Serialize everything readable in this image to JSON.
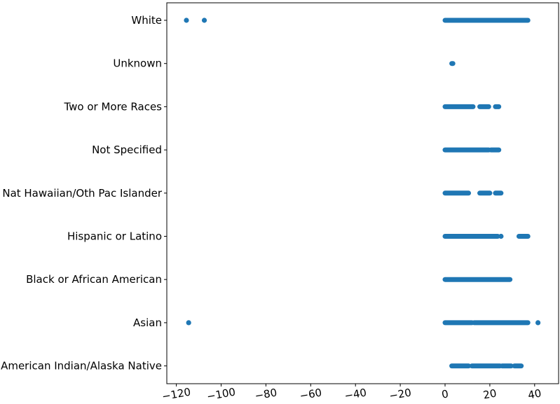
{
  "chart_data": {
    "type": "scatter",
    "orientation": "horizontal-categorical",
    "title": "",
    "xlabel": "",
    "ylabel": "",
    "xlim": [
      -125,
      50
    ],
    "xticks": [
      -120,
      -100,
      -80,
      -60,
      -40,
      -20,
      0,
      20,
      40
    ],
    "xtick_labels": [
      "−120",
      "−100",
      "−80",
      "−60",
      "−40",
      "−20",
      "0",
      "20",
      "40"
    ],
    "grid": false,
    "legend": "none",
    "marker_color": "#1f77b4",
    "categories": [
      "American Indian/Alaska Native",
      "Asian",
      "Black or African American",
      "Hispanic or Latino",
      "Nat Hawaiian/Oth Pac Islander",
      "Not Specified",
      "Two or More Races",
      "Unknown",
      "White"
    ],
    "series": [
      {
        "category": "American Indian/Alaska Native",
        "ranges": [
          [
            3,
            10.5
          ],
          [
            12,
            24.5
          ],
          [
            25.5,
            29.5
          ],
          [
            31,
            34
          ]
        ],
        "points": []
      },
      {
        "category": "Asian",
        "ranges": [
          [
            0,
            12
          ],
          [
            13,
            37
          ]
        ],
        "points": [
          -114.5,
          41.5
        ]
      },
      {
        "category": "Black or African American",
        "ranges": [
          [
            0,
            29
          ]
        ],
        "points": []
      },
      {
        "category": "Hispanic or Latino",
        "ranges": [
          [
            0,
            23.5
          ],
          [
            33,
            37
          ]
        ],
        "points": [
          25
        ]
      },
      {
        "category": "Nat Hawaiian/Oth Pac Islander",
        "ranges": [
          [
            0,
            10.5
          ],
          [
            15.5,
            20
          ],
          [
            22.5,
            25
          ]
        ],
        "points": []
      },
      {
        "category": "Not Specified",
        "ranges": [
          [
            0,
            19.5
          ],
          [
            20.5,
            24
          ]
        ],
        "points": []
      },
      {
        "category": "Two or More Races",
        "ranges": [
          [
            0,
            12.5
          ],
          [
            15.5,
            19.5
          ],
          [
            22.5,
            24
          ]
        ],
        "points": []
      },
      {
        "category": "Unknown",
        "ranges": [
          [
            3,
            3.5
          ]
        ],
        "points": []
      },
      {
        "category": "White",
        "ranges": [
          [
            0,
            37
          ]
        ],
        "points": [
          -115.5,
          -107.5
        ]
      }
    ]
  }
}
